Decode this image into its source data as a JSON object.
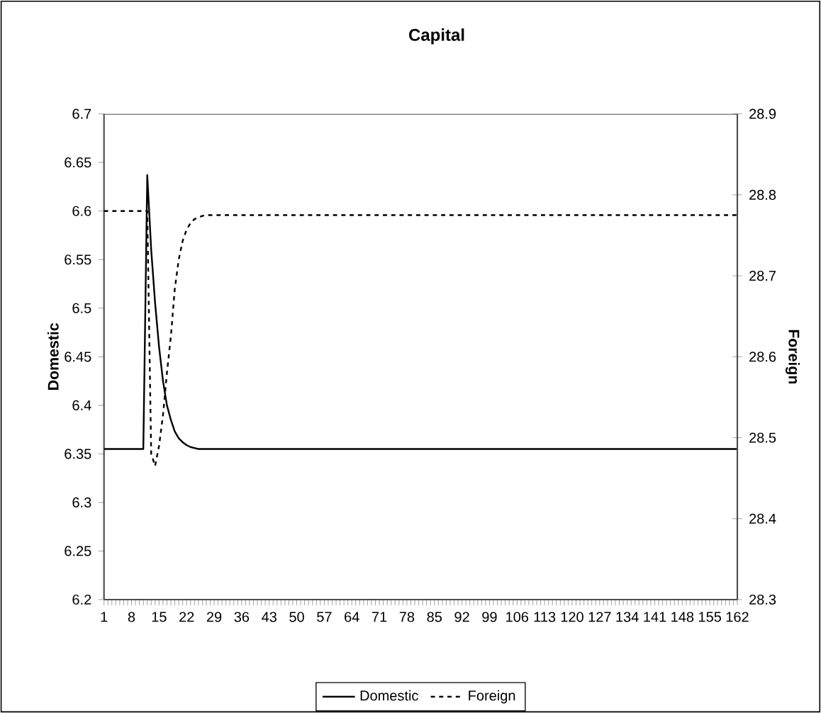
{
  "chart_data": {
    "type": "line",
    "title": "Capital",
    "ylabel": "Domestic",
    "y2label": "Foreign",
    "categories": [
      "1",
      null,
      null,
      null,
      null,
      null,
      null,
      "8",
      null,
      null,
      null,
      null,
      null,
      null,
      "15",
      null,
      null,
      null,
      null,
      null,
      null,
      "22",
      null,
      null,
      null,
      null,
      null,
      null,
      "29",
      null,
      null,
      null,
      null,
      null,
      null,
      "36",
      null,
      null,
      null,
      null,
      null,
      null,
      "43",
      null,
      null,
      null,
      null,
      null,
      null,
      "50",
      null,
      null,
      null,
      null,
      null,
      null,
      "57",
      null,
      null,
      null,
      null,
      null,
      null,
      "64",
      null,
      null,
      null,
      null,
      null,
      null,
      "71",
      null,
      null,
      null,
      null,
      null,
      null,
      "78",
      null,
      null,
      null,
      null,
      null,
      null,
      "85",
      null,
      null,
      null,
      null,
      null,
      null,
      "92",
      null,
      null,
      null,
      null,
      null,
      null,
      "99",
      null,
      null,
      null,
      null,
      null,
      null,
      "106",
      null,
      null,
      null,
      null,
      null,
      null,
      "113",
      null,
      null,
      null,
      null,
      null,
      null,
      "120",
      null,
      null,
      null,
      null,
      null,
      null,
      "127",
      null,
      null,
      null,
      null,
      null,
      null,
      "134",
      null,
      null,
      null,
      null,
      null,
      null,
      "141",
      null,
      null,
      null,
      null,
      null,
      null,
      "148",
      null,
      null,
      null,
      null,
      null,
      null,
      "155",
      null,
      null,
      null,
      null,
      null,
      null,
      "162"
    ],
    "series": [
      {
        "name": "Domestic",
        "color": "#000000",
        "line_style": "solid",
        "values": [
          6.355,
          6.355,
          6.355,
          6.355,
          6.355,
          6.355,
          6.355,
          6.355,
          6.355,
          6.355,
          6.355,
          6.637,
          6.56,
          6.505,
          6.46,
          6.425,
          6.4,
          6.385,
          6.373,
          6.366,
          6.362,
          6.359,
          6.357,
          6.356,
          6.355,
          6.355,
          6.355,
          6.355,
          6.355,
          6.355,
          6.355,
          6.355,
          6.355,
          6.355,
          6.355,
          6.355,
          6.355,
          6.355,
          6.355,
          6.355,
          6.355,
          6.355,
          6.355,
          6.355,
          6.355,
          6.355,
          6.355,
          6.355,
          6.355,
          6.355,
          6.355,
          6.355,
          6.355,
          6.355,
          6.355,
          6.355,
          6.355,
          6.355,
          6.355,
          6.355,
          6.355,
          6.355,
          6.355,
          6.355,
          6.355,
          6.355,
          6.355,
          6.355,
          6.355,
          6.355,
          6.355,
          6.355,
          6.355,
          6.355,
          6.355,
          6.355,
          6.355,
          6.355,
          6.355,
          6.355,
          6.355,
          6.355,
          6.355,
          6.355,
          6.355,
          6.355,
          6.355,
          6.355,
          6.355,
          6.355,
          6.355,
          6.355,
          6.355,
          6.355,
          6.355,
          6.355,
          6.355,
          6.355,
          6.355,
          6.355,
          6.355,
          6.355,
          6.355,
          6.355,
          6.355,
          6.355,
          6.355,
          6.355,
          6.355,
          6.355,
          6.355,
          6.355,
          6.355,
          6.355,
          6.355,
          6.355,
          6.355,
          6.355,
          6.355,
          6.355,
          6.355,
          6.355,
          6.355,
          6.355,
          6.355,
          6.355,
          6.355,
          6.355,
          6.355,
          6.355,
          6.355,
          6.355,
          6.355,
          6.355,
          6.355,
          6.355,
          6.355,
          6.355,
          6.355,
          6.355,
          6.355,
          6.355,
          6.355,
          6.355,
          6.355,
          6.355,
          6.355,
          6.355,
          6.355,
          6.355,
          6.355,
          6.355,
          6.355,
          6.355,
          6.355,
          6.355,
          6.355,
          6.355,
          6.355,
          6.355,
          6.355,
          6.355
        ]
      },
      {
        "name": "Foreign",
        "color": "#000000",
        "line_style": "dashed",
        "axis": "y2",
        "values": [
          28.78,
          28.78,
          28.78,
          28.78,
          28.78,
          28.78,
          28.78,
          28.78,
          28.78,
          28.78,
          28.78,
          28.78,
          28.48,
          28.465,
          28.49,
          28.528,
          28.58,
          28.625,
          28.684,
          28.72,
          28.743,
          28.757,
          28.765,
          28.77,
          28.772,
          28.774,
          28.775,
          28.775,
          28.775,
          28.775,
          28.775,
          28.775,
          28.775,
          28.775,
          28.775,
          28.775,
          28.775,
          28.775,
          28.775,
          28.775,
          28.775,
          28.775,
          28.775,
          28.775,
          28.775,
          28.775,
          28.775,
          28.775,
          28.775,
          28.775,
          28.775,
          28.775,
          28.775,
          28.775,
          28.775,
          28.775,
          28.775,
          28.775,
          28.775,
          28.775,
          28.775,
          28.775,
          28.775,
          28.775,
          28.775,
          28.775,
          28.775,
          28.775,
          28.775,
          28.775,
          28.775,
          28.775,
          28.775,
          28.775,
          28.775,
          28.775,
          28.775,
          28.775,
          28.775,
          28.775,
          28.775,
          28.775,
          28.775,
          28.775,
          28.775,
          28.775,
          28.775,
          28.775,
          28.775,
          28.775,
          28.775,
          28.775,
          28.775,
          28.775,
          28.775,
          28.775,
          28.775,
          28.775,
          28.775,
          28.775,
          28.775,
          28.775,
          28.775,
          28.775,
          28.775,
          28.775,
          28.775,
          28.775,
          28.775,
          28.775,
          28.775,
          28.775,
          28.775,
          28.775,
          28.775,
          28.775,
          28.775,
          28.775,
          28.775,
          28.775,
          28.775,
          28.775,
          28.775,
          28.775,
          28.775,
          28.775,
          28.775,
          28.775,
          28.775,
          28.775,
          28.775,
          28.775,
          28.775,
          28.775,
          28.775,
          28.775,
          28.775,
          28.775,
          28.775,
          28.775,
          28.775,
          28.775,
          28.775,
          28.775,
          28.775,
          28.775,
          28.775,
          28.775,
          28.775,
          28.775,
          28.775,
          28.775,
          28.775,
          28.775,
          28.775,
          28.775,
          28.775,
          28.775,
          28.775,
          28.775,
          28.775,
          28.775
        ]
      }
    ],
    "ylim": [
      6.2,
      6.7
    ],
    "yticks": [
      6.2,
      6.25,
      6.3,
      6.35,
      6.4,
      6.45,
      6.5,
      6.55,
      6.6,
      6.65,
      6.7
    ],
    "y2lim": [
      28.3,
      28.9
    ],
    "y2ticks": [
      28.3,
      28.4,
      28.5,
      28.6,
      28.7,
      28.8,
      28.9
    ],
    "legend": "bottom",
    "grid": false
  }
}
